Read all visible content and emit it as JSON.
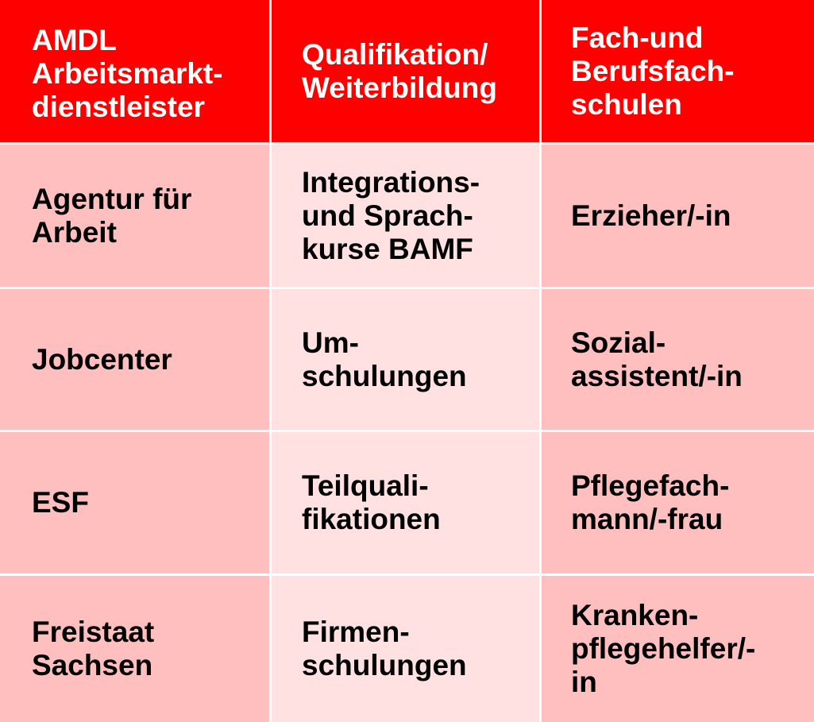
{
  "header": {
    "col1": "AMDL\nArbeitsmarkt-\ndienstleister",
    "col2": "Qualifikation/\nWeiterbildung",
    "col3": "Fach-und\nBerufsfach-\nschulen"
  },
  "rows": [
    {
      "col1": "Agentur für\nArbeit",
      "col2": "Integrations-\nund Sprach-\nkurse BAMF",
      "col3": "Erzieher/-in"
    },
    {
      "col1": "Jobcenter",
      "col2": "Um-\nschulungen",
      "col3": "Sozial-\nassistent/-in"
    },
    {
      "col1": "ESF",
      "col2": "Teilquali-\nfikationen",
      "col3": "Pflegefach-\nmann/-frau"
    },
    {
      "col1": "Freistaat\nSachsen",
      "col2": "Firmen-\nschulungen",
      "col3": "Kranken-\npflegehelfer/-\nin"
    }
  ],
  "colors": {
    "header_bg": "#ff0000",
    "header_text": "#ffffff",
    "body_dark": "#ffbfbf",
    "body_light": "#ffe1e1",
    "body_text": "#000000",
    "grid_line": "#ffffff"
  }
}
